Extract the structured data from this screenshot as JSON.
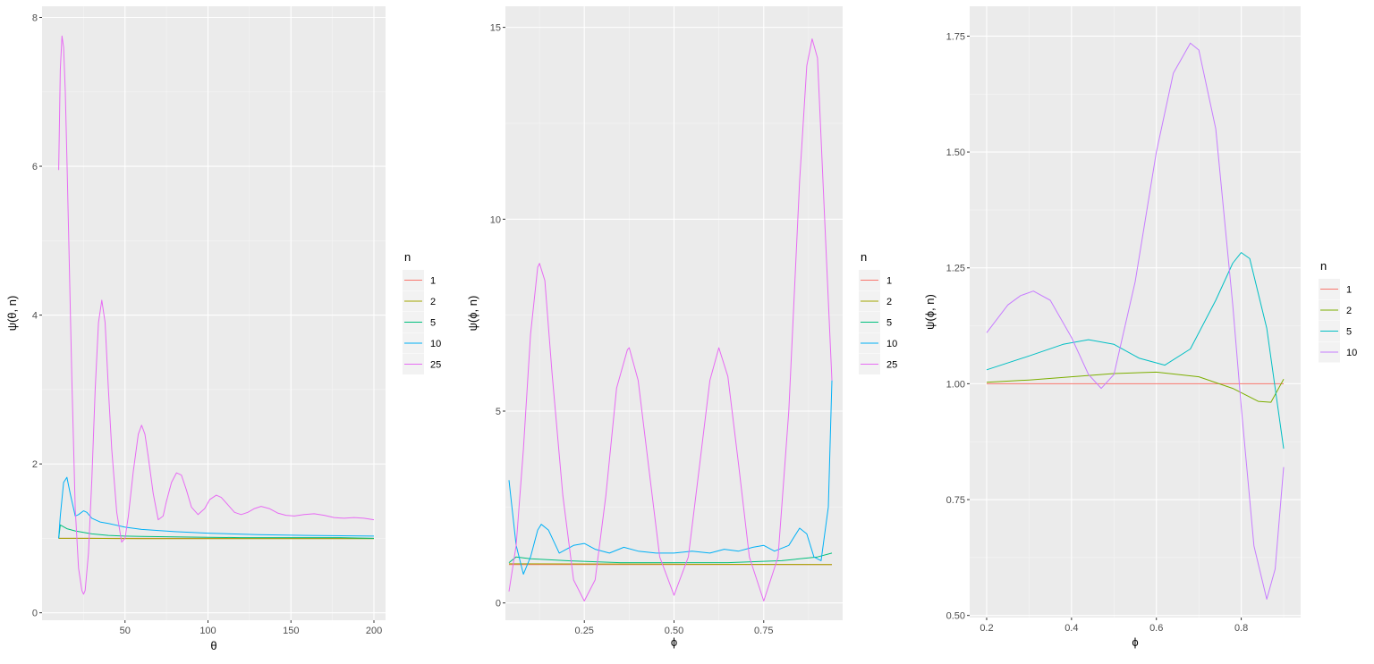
{
  "chart_data": [
    {
      "type": "line",
      "xlabel": "θ",
      "ylabel": "ψ(θ, n)",
      "xlim": [
        0,
        207
      ],
      "ylim": [
        -0.1,
        8.15
      ],
      "xticks": [
        50,
        100,
        150,
        200
      ],
      "yticks": [
        0,
        2,
        4,
        6,
        8
      ],
      "grid": true,
      "legend": {
        "title": "n",
        "position": "right"
      },
      "series": [
        {
          "name": "1",
          "color": "#F8766D",
          "x": [
            10,
            200
          ],
          "y": [
            1.0,
            1.0
          ]
        },
        {
          "name": "2",
          "color": "#A3A500",
          "x": [
            10,
            30,
            60,
            100,
            150,
            200
          ],
          "y": [
            1.0,
            1.0,
            0.995,
            0.995,
            0.995,
            0.995
          ]
        },
        {
          "name": "5",
          "color": "#00BF7D",
          "x": [
            10,
            11,
            15,
            20,
            25,
            30,
            40,
            50,
            60,
            80,
            100,
            120,
            150,
            180,
            200
          ],
          "y": [
            1.0,
            1.18,
            1.13,
            1.1,
            1.08,
            1.06,
            1.04,
            1.03,
            1.025,
            1.02,
            1.015,
            1.01,
            1.01,
            1.01,
            1.0
          ]
        },
        {
          "name": "10",
          "color": "#00B0F6",
          "x": [
            10,
            11,
            13,
            15,
            17,
            20,
            22,
            25,
            27,
            30,
            35,
            40,
            50,
            60,
            80,
            100,
            130,
            160,
            200
          ],
          "y": [
            1.0,
            1.3,
            1.75,
            1.82,
            1.6,
            1.3,
            1.32,
            1.37,
            1.35,
            1.27,
            1.22,
            1.2,
            1.15,
            1.12,
            1.09,
            1.07,
            1.05,
            1.04,
            1.03
          ]
        },
        {
          "name": "25",
          "color": "#E76BF3",
          "x": [
            10,
            11,
            12,
            13,
            14,
            15,
            16,
            18,
            20,
            22,
            24,
            25,
            26,
            28,
            30,
            32,
            34,
            36,
            38,
            40,
            42,
            45,
            48,
            50,
            52,
            55,
            58,
            60,
            62,
            64,
            67,
            70,
            73,
            75,
            78,
            81,
            84,
            87,
            90,
            94,
            98,
            101,
            105,
            108,
            112,
            116,
            120,
            124,
            128,
            132,
            137,
            142,
            147,
            152,
            158,
            164,
            170,
            176,
            182,
            188,
            194,
            200
          ],
          "y": [
            5.95,
            7.3,
            7.75,
            7.6,
            7.0,
            6.1,
            5.1,
            3.1,
            1.4,
            0.6,
            0.3,
            0.25,
            0.3,
            0.8,
            1.8,
            3.0,
            3.9,
            4.2,
            3.9,
            3.0,
            2.2,
            1.35,
            0.95,
            1.0,
            1.3,
            1.9,
            2.4,
            2.52,
            2.4,
            2.1,
            1.6,
            1.25,
            1.3,
            1.5,
            1.75,
            1.88,
            1.85,
            1.65,
            1.42,
            1.32,
            1.4,
            1.52,
            1.58,
            1.55,
            1.45,
            1.35,
            1.32,
            1.35,
            1.4,
            1.43,
            1.4,
            1.34,
            1.31,
            1.3,
            1.32,
            1.33,
            1.31,
            1.28,
            1.27,
            1.28,
            1.27,
            1.25
          ]
        }
      ]
    },
    {
      "type": "line",
      "xlabel": "ϕ",
      "ylabel": "ψ(ϕ, n)",
      "xlim": [
        0.03,
        0.97
      ],
      "ylim": [
        -0.45,
        15.55
      ],
      "xticks": [
        0.25,
        0.5,
        0.75
      ],
      "xtick_labels": [
        "0.25",
        "0.50",
        "0.75"
      ],
      "yticks": [
        0,
        5,
        10,
        15
      ],
      "grid": true,
      "legend": {
        "title": "n",
        "position": "right"
      },
      "series": [
        {
          "name": "1",
          "color": "#F8766D",
          "x": [
            0.04,
            0.94
          ],
          "y": [
            1.0,
            1.0
          ]
        },
        {
          "name": "2",
          "color": "#A3A500",
          "x": [
            0.04,
            0.5,
            0.94
          ],
          "y": [
            1.02,
            1.01,
            1.0
          ]
        },
        {
          "name": "5",
          "color": "#00BF7D",
          "x": [
            0.04,
            0.06,
            0.1,
            0.2,
            0.35,
            0.5,
            0.65,
            0.8,
            0.9,
            0.94
          ],
          "y": [
            1.05,
            1.2,
            1.15,
            1.1,
            1.05,
            1.05,
            1.05,
            1.1,
            1.2,
            1.3
          ]
        },
        {
          "name": "10",
          "color": "#00B0F6",
          "x": [
            0.04,
            0.06,
            0.08,
            0.1,
            0.12,
            0.13,
            0.15,
            0.18,
            0.22,
            0.25,
            0.28,
            0.32,
            0.36,
            0.4,
            0.45,
            0.5,
            0.55,
            0.6,
            0.64,
            0.68,
            0.72,
            0.75,
            0.78,
            0.82,
            0.85,
            0.87,
            0.89,
            0.91,
            0.93,
            0.94
          ],
          "y": [
            3.2,
            1.5,
            0.75,
            1.2,
            1.9,
            2.05,
            1.9,
            1.3,
            1.5,
            1.55,
            1.4,
            1.3,
            1.45,
            1.35,
            1.3,
            1.3,
            1.35,
            1.3,
            1.4,
            1.35,
            1.45,
            1.5,
            1.35,
            1.5,
            1.95,
            1.8,
            1.2,
            1.1,
            2.5,
            5.8
          ]
        },
        {
          "name": "25",
          "color": "#E76BF3",
          "x": [
            0.04,
            0.06,
            0.08,
            0.1,
            0.12,
            0.125,
            0.14,
            0.16,
            0.19,
            0.22,
            0.25,
            0.28,
            0.31,
            0.34,
            0.37,
            0.375,
            0.4,
            0.43,
            0.46,
            0.5,
            0.54,
            0.57,
            0.6,
            0.625,
            0.65,
            0.68,
            0.71,
            0.75,
            0.79,
            0.82,
            0.85,
            0.87,
            0.885,
            0.9,
            0.92,
            0.94
          ],
          "y": [
            0.3,
            1.5,
            4.0,
            7.0,
            8.75,
            8.85,
            8.4,
            6.0,
            2.8,
            0.6,
            0.05,
            0.6,
            2.8,
            5.6,
            6.6,
            6.65,
            5.8,
            3.5,
            1.2,
            0.2,
            1.2,
            3.5,
            5.8,
            6.65,
            5.9,
            3.6,
            1.2,
            0.05,
            1.2,
            5.0,
            11.0,
            14.0,
            14.7,
            14.2,
            10.0,
            5.8
          ]
        }
      ]
    },
    {
      "type": "line",
      "xlabel": "ϕ",
      "ylabel": "ψ(ϕ, n)",
      "xlim": [
        0.16,
        0.94
      ],
      "ylim": [
        0.4955,
        1.8145
      ],
      "xticks": [
        0.2,
        0.4,
        0.6,
        0.8
      ],
      "xtick_labels": [
        "0.2",
        "0.4",
        "0.6",
        "0.8"
      ],
      "yticks": [
        0.5,
        0.75,
        1.0,
        1.25,
        1.5,
        1.75
      ],
      "ytick_labels": [
        "0.50",
        "0.75",
        "1.00",
        "1.25",
        "1.50",
        "1.75"
      ],
      "grid": true,
      "legend": {
        "title": "n",
        "position": "right"
      },
      "series": [
        {
          "name": "1",
          "color": "#F8766D",
          "x": [
            0.2,
            0.9
          ],
          "y": [
            1.0,
            1.0
          ]
        },
        {
          "name": "2",
          "color": "#7CAE00",
          "x": [
            0.2,
            0.3,
            0.4,
            0.5,
            0.6,
            0.7,
            0.78,
            0.84,
            0.87,
            0.9
          ],
          "y": [
            1.003,
            1.008,
            1.015,
            1.022,
            1.025,
            1.015,
            0.99,
            0.962,
            0.96,
            1.01
          ]
        },
        {
          "name": "5",
          "color": "#00BFC4",
          "x": [
            0.2,
            0.3,
            0.38,
            0.44,
            0.5,
            0.56,
            0.62,
            0.68,
            0.74,
            0.78,
            0.8,
            0.82,
            0.86,
            0.9
          ],
          "y": [
            1.03,
            1.06,
            1.085,
            1.095,
            1.085,
            1.055,
            1.04,
            1.075,
            1.18,
            1.26,
            1.283,
            1.27,
            1.12,
            0.86
          ]
        },
        {
          "name": "10",
          "color": "#C77CFF",
          "x": [
            0.2,
            0.25,
            0.28,
            0.31,
            0.35,
            0.4,
            0.44,
            0.47,
            0.5,
            0.55,
            0.6,
            0.64,
            0.68,
            0.7,
            0.74,
            0.78,
            0.8,
            0.83,
            0.86,
            0.88,
            0.9
          ],
          "y": [
            1.11,
            1.17,
            1.19,
            1.2,
            1.18,
            1.1,
            1.02,
            0.99,
            1.02,
            1.22,
            1.5,
            1.67,
            1.735,
            1.72,
            1.55,
            1.17,
            0.95,
            0.65,
            0.535,
            0.6,
            0.82
          ]
        }
      ]
    }
  ]
}
